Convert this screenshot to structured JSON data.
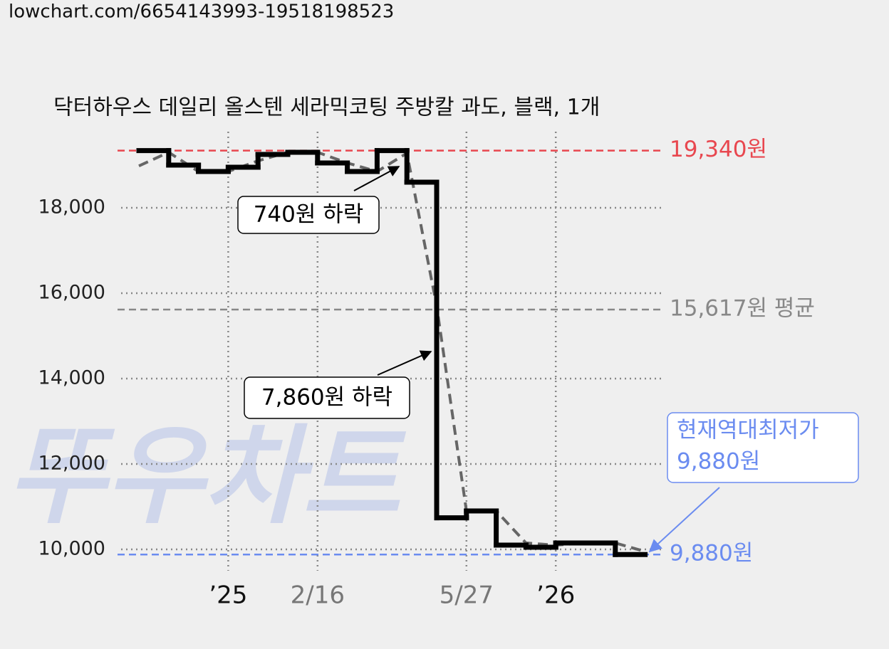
{
  "url": "lowchart.com/6654143993-19518198523",
  "chart_data": {
    "type": "line",
    "title": "닥터하우스 데일리 올스텐 세라믹코팅 주방칼 과도, 블랙, 1개",
    "watermark": "뚜우차트",
    "xlim": [
      0,
      17
    ],
    "xticks": [
      {
        "value": 3,
        "label": "’25"
      },
      {
        "value": 6,
        "label": "2/16"
      },
      {
        "value": 11,
        "label": "5/27"
      },
      {
        "value": 14,
        "label": "’26"
      }
    ],
    "ylim": [
      9500,
      19500
    ],
    "yticks": [
      {
        "value": 10000,
        "label": "10,000"
      },
      {
        "value": 12000,
        "label": "12,000"
      },
      {
        "value": 14000,
        "label": "14,000"
      },
      {
        "value": 16000,
        "label": "16,000"
      },
      {
        "value": 18000,
        "label": "18,000"
      }
    ],
    "grid": true,
    "series": [
      {
        "style": "step",
        "color": "#000000",
        "values": [
          19340,
          19000,
          18850,
          18950,
          19250,
          19300,
          19050,
          18850,
          19340,
          18600,
          10740,
          10900,
          10100,
          10050,
          10150,
          10150,
          9880
        ]
      },
      {
        "style": "dashed",
        "color": "#666666",
        "values": [
          18980,
          19300,
          18850,
          18850,
          19100,
          19300,
          19300,
          19050,
          18850,
          19280,
          15700,
          10900,
          10900,
          10150,
          10100,
          10150,
          10150,
          9950
        ]
      }
    ],
    "hlines": [
      {
        "value": 19340,
        "label": "19,340원",
        "color": "#e8474f"
      },
      {
        "value": 15617,
        "label": "15,617원 평균",
        "color": "#888888"
      },
      {
        "value": 9880,
        "label": "9,880원",
        "color": "#6b8cf0"
      }
    ],
    "annotations": [
      "740원 하락",
      "7,860원 하락"
    ],
    "callout": [
      "현재역대최저가",
      "9,880원"
    ]
  }
}
